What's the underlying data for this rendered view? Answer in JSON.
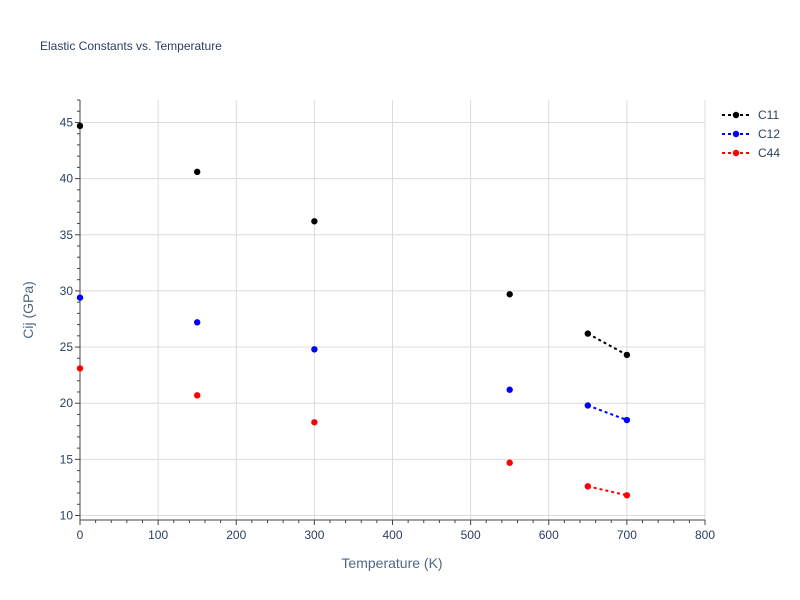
{
  "chart_data": {
    "type": "scatter",
    "title": "Elastic Constants vs. Temperature",
    "xlabel": "Temperature (K)",
    "ylabel": "Cij (GPa)",
    "xlim": [
      0,
      800
    ],
    "ylim": [
      9.6,
      47.0
    ],
    "xticks": [
      0,
      100,
      200,
      300,
      400,
      500,
      600,
      700,
      800
    ],
    "yticks": [
      10,
      15,
      20,
      25,
      30,
      35,
      40,
      45
    ],
    "grid": true,
    "legend_position": "top-right",
    "series": [
      {
        "name": "C11",
        "color": "#000000",
        "points": [
          [
            0,
            44.7
          ],
          [
            150,
            40.6
          ],
          [
            300,
            36.2
          ],
          [
            550,
            29.7
          ],
          [
            650,
            26.2
          ],
          [
            700,
            24.3
          ]
        ],
        "connected_from_index": 4
      },
      {
        "name": "C12",
        "color": "#0000ff",
        "points": [
          [
            0,
            29.4
          ],
          [
            150,
            27.2
          ],
          [
            300,
            24.8
          ],
          [
            550,
            21.2
          ],
          [
            650,
            19.8
          ],
          [
            700,
            18.5
          ]
        ],
        "connected_from_index": 4
      },
      {
        "name": "C44",
        "color": "#ff0000",
        "points": [
          [
            0,
            23.1
          ],
          [
            150,
            20.7
          ],
          [
            300,
            18.3
          ],
          [
            550,
            14.7
          ],
          [
            650,
            12.6
          ],
          [
            700,
            11.8
          ]
        ],
        "connected_from_index": 4
      }
    ]
  }
}
